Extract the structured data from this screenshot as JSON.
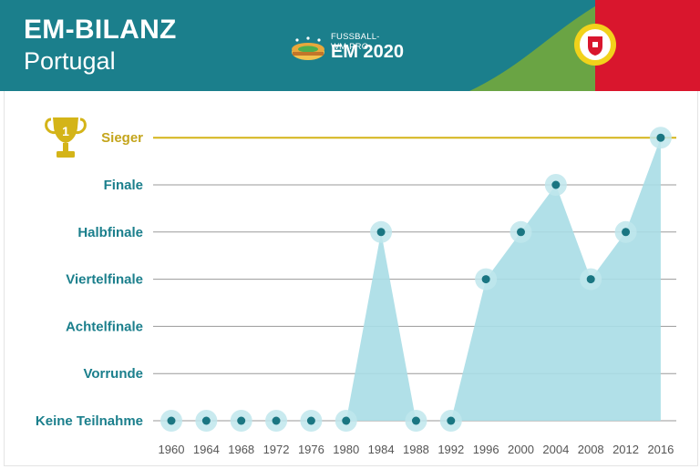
{
  "header": {
    "title": "EM-BILANZ",
    "subtitle": "Portugal",
    "logo_site": "FUSSBALL-WM.PRO",
    "logo_event": "EM 2020"
  },
  "colors": {
    "teal": "#1b7f8c",
    "flag_green": "#6aa444",
    "flag_red": "#d9162d",
    "winner_line": "#d4b418",
    "area_fill": "#a8dde5",
    "point": "#1a7682"
  },
  "chart_data": {
    "type": "area",
    "title": "EM-BILANZ",
    "subtitle": "Portugal",
    "x": [
      "1960",
      "1964",
      "1968",
      "1972",
      "1976",
      "1980",
      "1984",
      "1988",
      "1992",
      "1996",
      "2000",
      "2004",
      "2008",
      "2012",
      "2016"
    ],
    "levels": [
      "Keine Teilnahme",
      "Vorrunde",
      "Achtelfinale",
      "Viertelfinale",
      "Halbfinale",
      "Finale",
      "Sieger"
    ],
    "values": [
      0,
      0,
      0,
      0,
      0,
      0,
      4,
      0,
      0,
      3,
      4,
      5,
      3,
      4,
      6
    ],
    "highlight_level": "Sieger",
    "trophy_badge": "1",
    "grid": true
  }
}
